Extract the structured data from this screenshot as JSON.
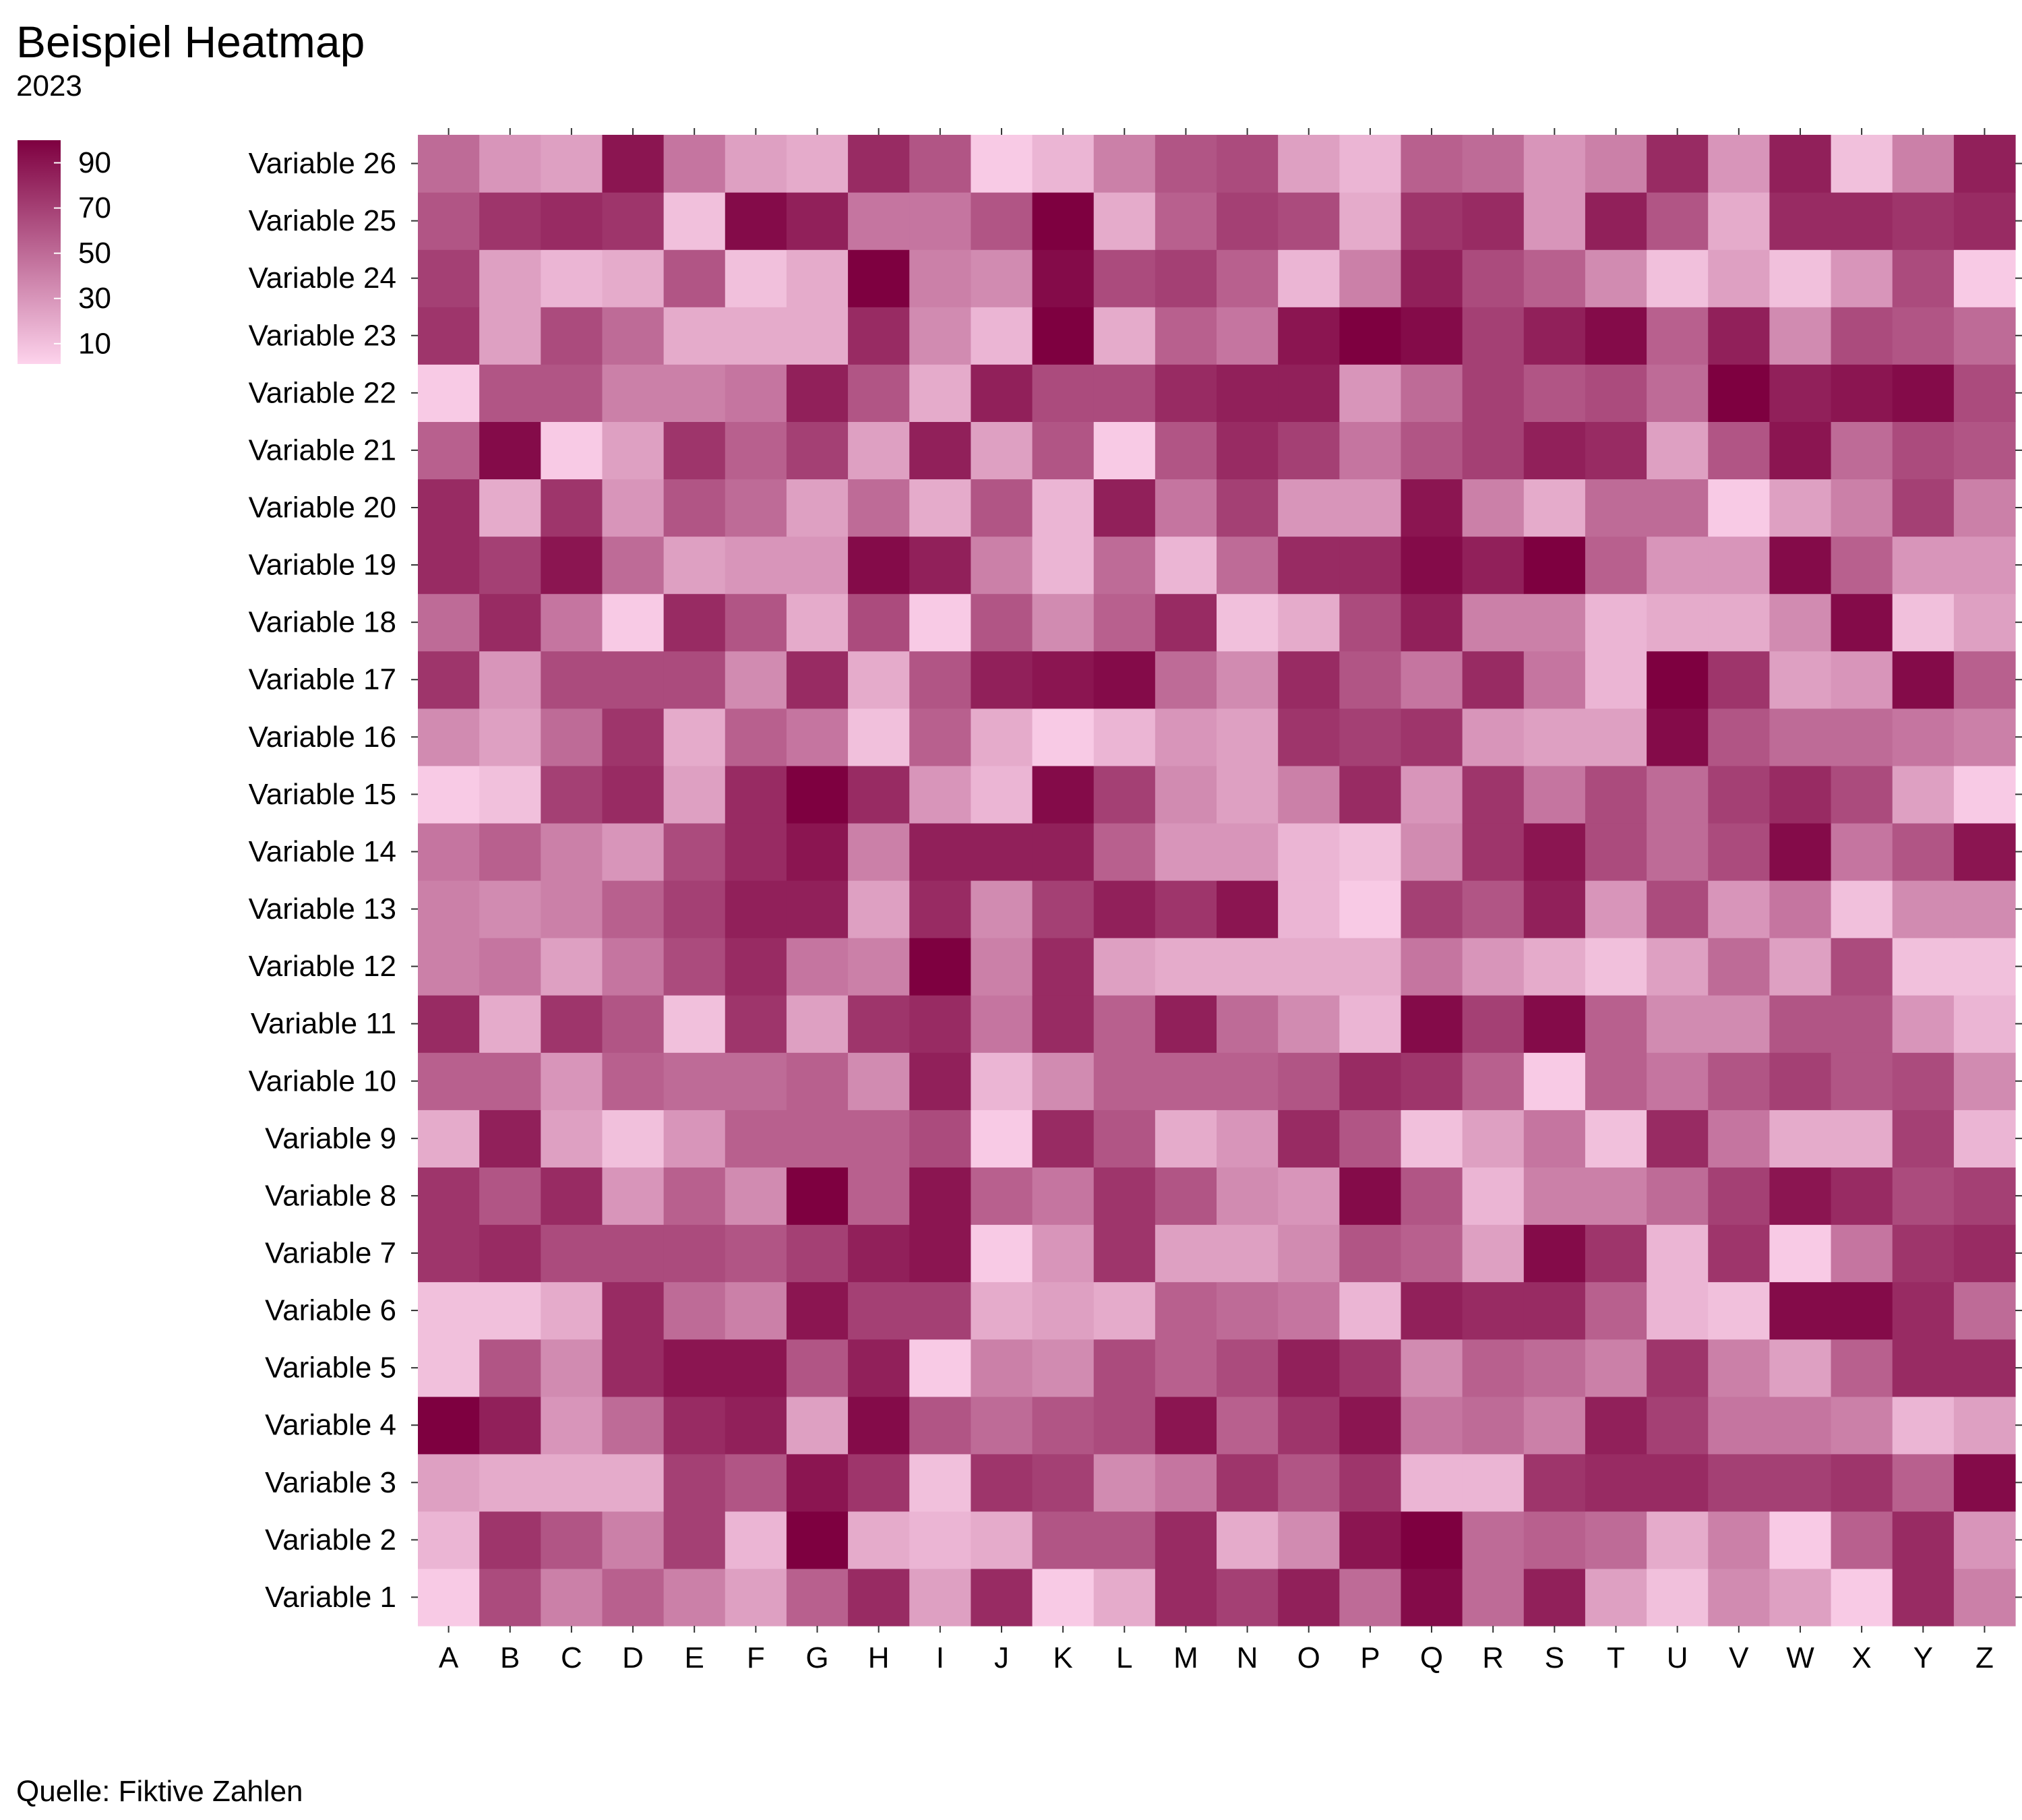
{
  "chart_data": {
    "type": "heatmap",
    "title": "Beispiel Heatmap",
    "subtitle": "2023",
    "caption": "Quelle: Fiktive Zahlen",
    "xlabel": "",
    "ylabel": "",
    "x_categories": [
      "A",
      "B",
      "C",
      "D",
      "E",
      "F",
      "G",
      "H",
      "I",
      "J",
      "K",
      "L",
      "M",
      "N",
      "O",
      "P",
      "Q",
      "R",
      "S",
      "T",
      "U",
      "V",
      "W",
      "X",
      "Y",
      "Z"
    ],
    "y_categories": [
      "Variable 1",
      "Variable 2",
      "Variable 3",
      "Variable 4",
      "Variable 5",
      "Variable 6",
      "Variable 7",
      "Variable 8",
      "Variable 9",
      "Variable 10",
      "Variable 11",
      "Variable 12",
      "Variable 13",
      "Variable 14",
      "Variable 15",
      "Variable 16",
      "Variable 17",
      "Variable 18",
      "Variable 19",
      "Variable 20",
      "Variable 21",
      "Variable 22",
      "Variable 23",
      "Variable 24",
      "Variable 25",
      "Variable 26"
    ],
    "value_range": [
      1,
      100
    ],
    "legend": {
      "position": "top-left",
      "ticks": [
        10,
        30,
        50,
        70,
        90
      ],
      "low_color": "#fdd3ec",
      "high_color": "#7e0040"
    },
    "values": [
      [
        5,
        65,
        40,
        55,
        40,
        25,
        55,
        80,
        25,
        80,
        5,
        20,
        80,
        70,
        85,
        50,
        95,
        50,
        85,
        25,
        10,
        35,
        25,
        5,
        80,
        40
      ],
      [
        15,
        75,
        60,
        40,
        70,
        15,
        100,
        20,
        15,
        20,
        60,
        60,
        80,
        20,
        35,
        90,
        100,
        50,
        55,
        50,
        20,
        40,
        5,
        55,
        80,
        30
      ],
      [
        25,
        20,
        20,
        20,
        70,
        60,
        90,
        75,
        10,
        75,
        70,
        35,
        45,
        75,
        60,
        75,
        15,
        15,
        75,
        80,
        80,
        70,
        70,
        75,
        55,
        95
      ],
      [
        100,
        85,
        30,
        50,
        80,
        85,
        25,
        95,
        60,
        50,
        60,
        65,
        90,
        55,
        75,
        90,
        45,
        50,
        40,
        85,
        70,
        45,
        45,
        40,
        15,
        25
      ],
      [
        10,
        60,
        35,
        80,
        90,
        90,
        60,
        85,
        5,
        40,
        35,
        65,
        55,
        65,
        85,
        75,
        35,
        55,
        50,
        40,
        75,
        40,
        25,
        55,
        80,
        80
      ],
      [
        10,
        10,
        20,
        80,
        50,
        40,
        90,
        70,
        70,
        20,
        25,
        20,
        55,
        50,
        45,
        15,
        85,
        80,
        80,
        55,
        15,
        10,
        95,
        95,
        80,
        50
      ],
      [
        75,
        80,
        65,
        65,
        65,
        60,
        70,
        85,
        90,
        5,
        30,
        75,
        25,
        25,
        35,
        60,
        55,
        25,
        95,
        75,
        15,
        75,
        5,
        45,
        75,
        80
      ],
      [
        75,
        60,
        80,
        30,
        55,
        35,
        100,
        55,
        90,
        55,
        45,
        75,
        60,
        35,
        30,
        95,
        60,
        15,
        40,
        40,
        50,
        70,
        90,
        80,
        65,
        70
      ],
      [
        20,
        85,
        25,
        10,
        30,
        55,
        55,
        55,
        65,
        5,
        80,
        60,
        20,
        30,
        80,
        60,
        10,
        25,
        45,
        10,
        80,
        45,
        20,
        20,
        70,
        15
      ],
      [
        55,
        55,
        30,
        55,
        50,
        50,
        55,
        35,
        85,
        15,
        35,
        55,
        55,
        55,
        60,
        80,
        75,
        55,
        5,
        55,
        45,
        60,
        70,
        60,
        65,
        35
      ],
      [
        80,
        20,
        75,
        60,
        10,
        75,
        25,
        75,
        80,
        45,
        80,
        55,
        85,
        50,
        35,
        15,
        95,
        70,
        95,
        55,
        35,
        35,
        60,
        60,
        30,
        15
      ],
      [
        40,
        45,
        25,
        45,
        65,
        80,
        45,
        40,
        100,
        40,
        80,
        25,
        20,
        20,
        20,
        20,
        45,
        30,
        20,
        10,
        25,
        50,
        25,
        65,
        10,
        10
      ],
      [
        40,
        35,
        40,
        55,
        70,
        85,
        85,
        25,
        80,
        35,
        70,
        85,
        75,
        90,
        15,
        5,
        70,
        60,
        85,
        30,
        65,
        30,
        45,
        10,
        35,
        35
      ],
      [
        45,
        55,
        40,
        30,
        65,
        80,
        90,
        40,
        85,
        85,
        85,
        55,
        30,
        30,
        15,
        10,
        35,
        75,
        90,
        65,
        50,
        65,
        95,
        45,
        60,
        90
      ],
      [
        5,
        10,
        70,
        80,
        25,
        80,
        100,
        80,
        30,
        15,
        95,
        70,
        35,
        25,
        40,
        80,
        30,
        75,
        45,
        65,
        50,
        70,
        80,
        65,
        25,
        5
      ],
      [
        35,
        25,
        50,
        75,
        20,
        55,
        45,
        10,
        55,
        20,
        5,
        15,
        30,
        25,
        75,
        70,
        75,
        30,
        25,
        25,
        95,
        60,
        50,
        50,
        45,
        40
      ],
      [
        75,
        30,
        65,
        65,
        65,
        35,
        80,
        20,
        60,
        85,
        90,
        95,
        50,
        35,
        80,
        60,
        45,
        80,
        45,
        15,
        100,
        75,
        25,
        30,
        95,
        55
      ],
      [
        50,
        80,
        45,
        5,
        80,
        60,
        20,
        65,
        5,
        60,
        35,
        55,
        80,
        10,
        20,
        65,
        85,
        40,
        40,
        15,
        20,
        20,
        35,
        95,
        10,
        25
      ],
      [
        80,
        70,
        90,
        50,
        25,
        30,
        30,
        95,
        85,
        40,
        15,
        50,
        15,
        50,
        80,
        80,
        95,
        85,
        100,
        55,
        30,
        30,
        95,
        55,
        30,
        30
      ],
      [
        80,
        20,
        75,
        30,
        60,
        50,
        25,
        50,
        20,
        60,
        15,
        85,
        45,
        70,
        30,
        30,
        90,
        40,
        20,
        50,
        50,
        5,
        25,
        40,
        70,
        40
      ],
      [
        55,
        95,
        5,
        25,
        75,
        55,
        70,
        25,
        85,
        25,
        60,
        5,
        60,
        80,
        70,
        45,
        60,
        70,
        85,
        80,
        25,
        60,
        90,
        50,
        65,
        60
      ],
      [
        5,
        60,
        60,
        40,
        40,
        45,
        85,
        60,
        20,
        85,
        65,
        65,
        80,
        85,
        85,
        30,
        50,
        70,
        60,
        65,
        50,
        100,
        85,
        90,
        95,
        65
      ],
      [
        75,
        25,
        65,
        50,
        20,
        20,
        20,
        80,
        35,
        15,
        100,
        20,
        55,
        45,
        90,
        100,
        95,
        70,
        85,
        95,
        55,
        85,
        35,
        65,
        60,
        50
      ],
      [
        70,
        25,
        15,
        20,
        60,
        10,
        20,
        100,
        40,
        35,
        95,
        65,
        70,
        55,
        15,
        40,
        85,
        65,
        55,
        35,
        10,
        25,
        10,
        30,
        65,
        5
      ],
      [
        60,
        75,
        80,
        75,
        10,
        95,
        85,
        45,
        45,
        60,
        100,
        20,
        55,
        70,
        65,
        20,
        75,
        80,
        30,
        85,
        60,
        20,
        80,
        80,
        75,
        80
      ],
      [
        50,
        30,
        25,
        90,
        45,
        25,
        20,
        80,
        60,
        5,
        15,
        40,
        60,
        65,
        25,
        15,
        55,
        50,
        30,
        40,
        80,
        30,
        85,
        10,
        40,
        85
      ]
    ]
  }
}
